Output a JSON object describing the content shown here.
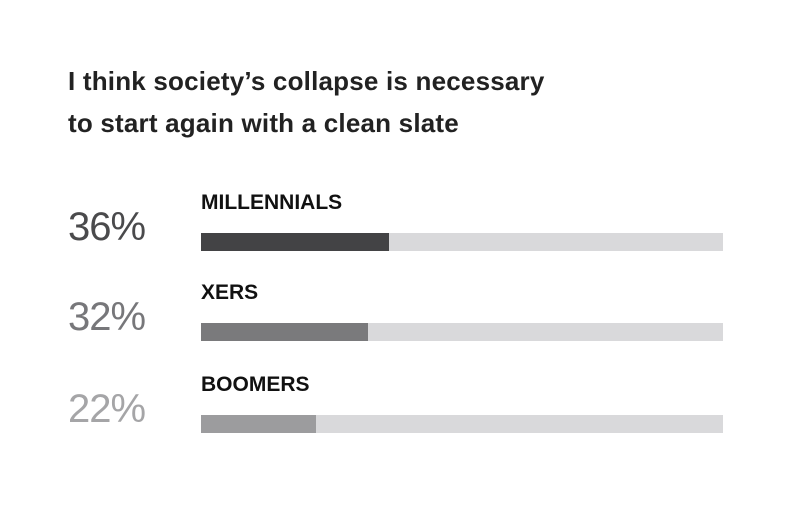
{
  "chart_data": {
    "type": "bar",
    "orientation": "horizontal",
    "title": "I think society’s collapse is necessary to start again with a clean slate",
    "title_lines": [
      "I think society’s collapse is necessary",
      "to start again with a clean slate"
    ],
    "categories": [
      "MILLENNIALS",
      "XERS",
      "BOOMERS"
    ],
    "values": [
      36,
      32,
      22
    ],
    "value_labels": [
      "36%",
      "32%",
      "22%"
    ],
    "xlim": [
      0,
      100
    ],
    "grid": false,
    "colors": {
      "fills": [
        "#434345",
        "#7a7a7c",
        "#9c9c9e"
      ],
      "labels": [
        "#4a4a4c",
        "#77777a",
        "#a5a5a7"
      ],
      "track": "#d9d9db"
    }
  }
}
